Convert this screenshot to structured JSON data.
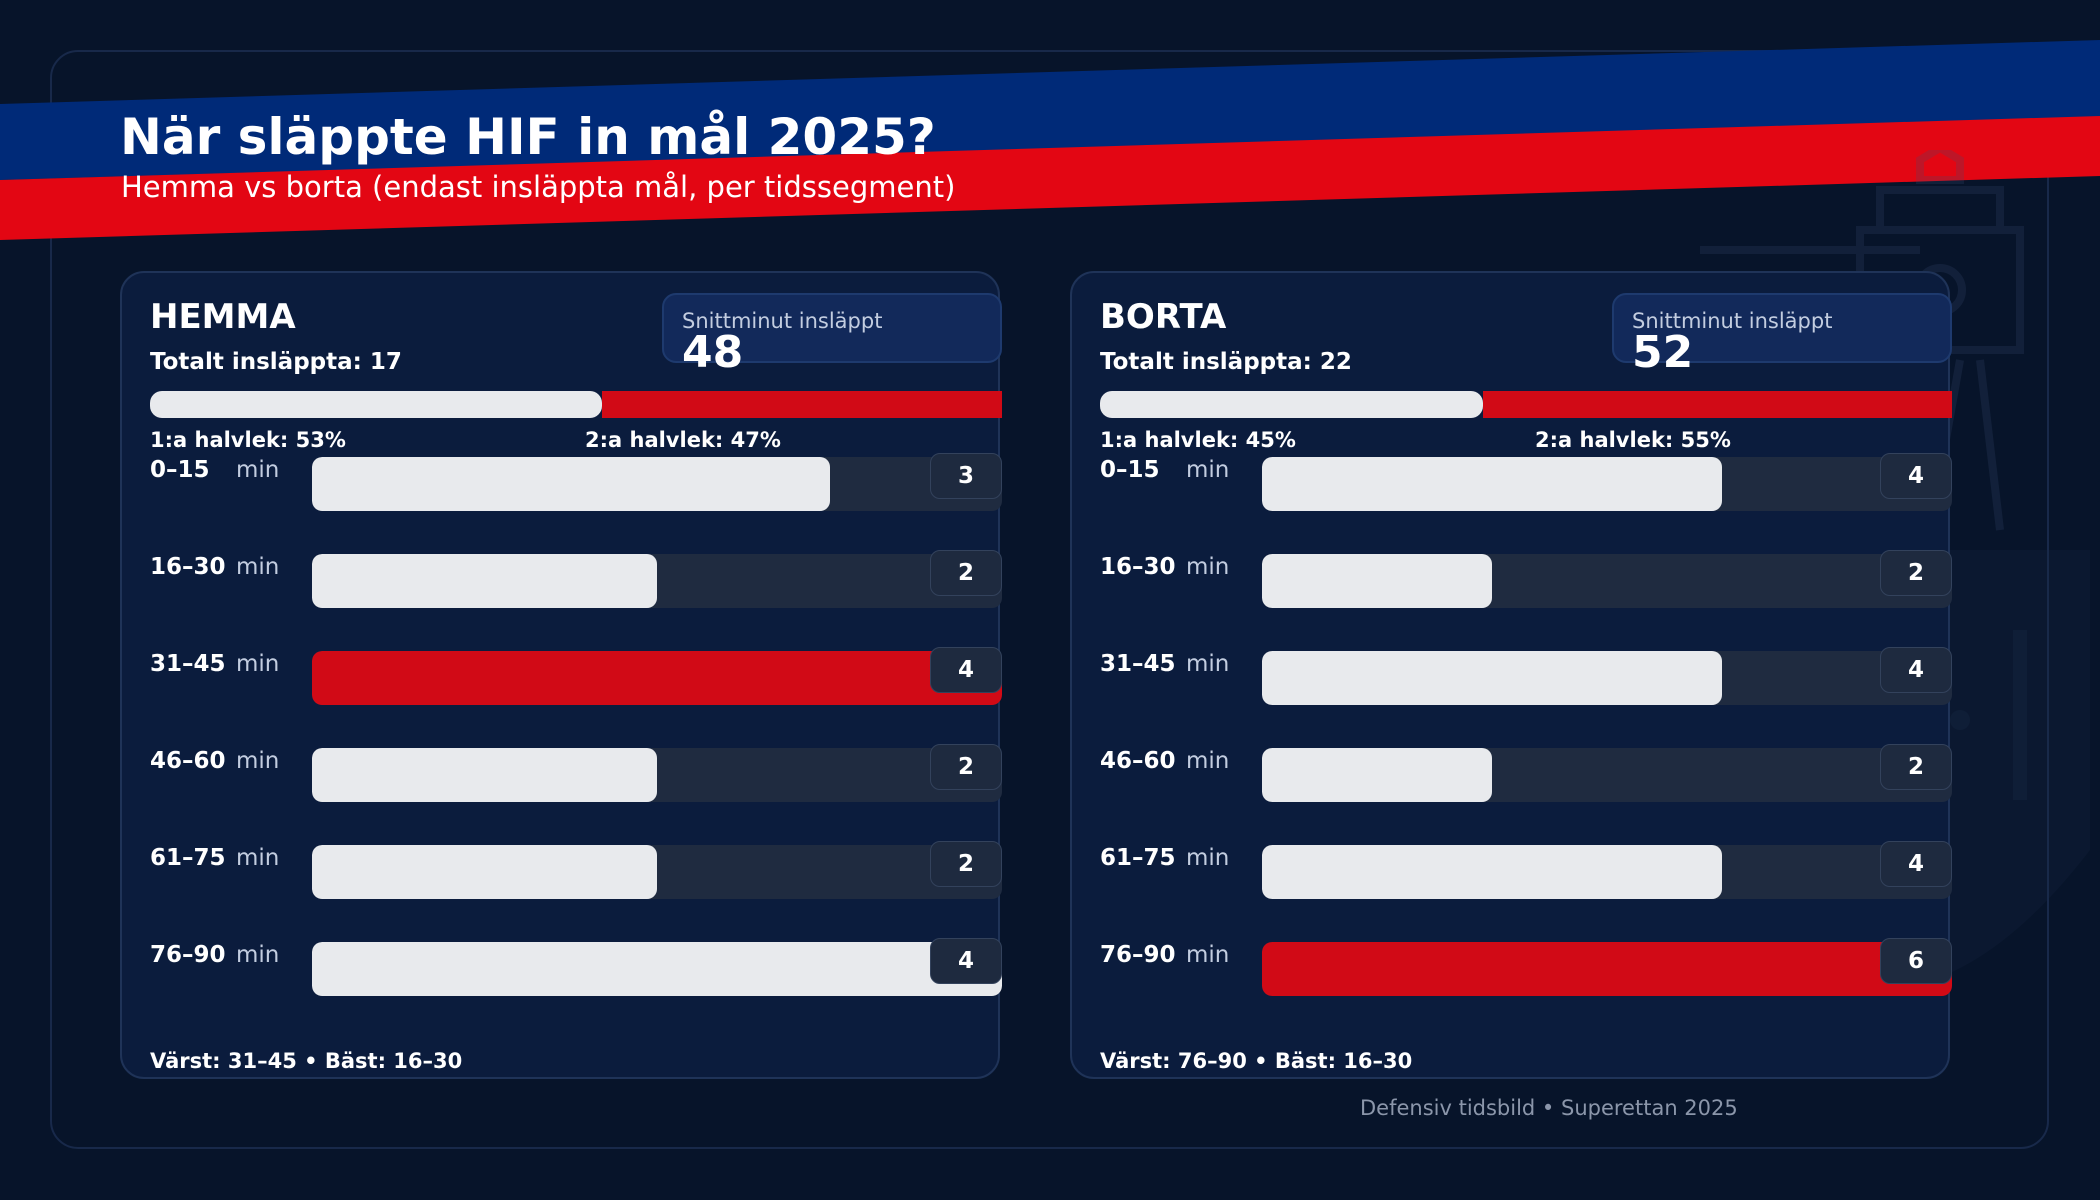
{
  "title": "När släppte HIF in mål 2025?",
  "subtitle": "Hemma vs borta (endast insläppta mål, per tidssegment)",
  "footer": "Defensiv tidsbild • Superettan 2025",
  "colors": {
    "background": "#07142a",
    "panel": "#0b1c3d",
    "accent_red": "#d10a16",
    "accent_blue": "#002a78",
    "bar_light": "#e8eaed",
    "track": "#1f2b40"
  },
  "chart_data": [
    {
      "type": "bar",
      "title": "HEMMA",
      "total_label": "Totalt insläppta: 17",
      "avg_label": "Snittminut insläppt",
      "avg_value": "48",
      "halves": [
        {
          "label": "1:a halvlek: 53%",
          "percent": 53
        },
        {
          "label": "2:a halvlek: 47%",
          "percent": 47
        }
      ],
      "categories": [
        "0–15",
        "16–30",
        "31–45",
        "46–60",
        "61–75",
        "76–90"
      ],
      "unit": "min",
      "values": [
        3,
        2,
        4,
        2,
        2,
        4
      ],
      "highlight_index": 2,
      "xlim": [
        0,
        4
      ],
      "summary": "Värst: 31–45  •  Bäst: 16–30"
    },
    {
      "type": "bar",
      "title": "BORTA",
      "total_label": "Totalt insläppta: 22",
      "avg_label": "Snittminut insläppt",
      "avg_value": "52",
      "halves": [
        {
          "label": "1:a halvlek: 45%",
          "percent": 45
        },
        {
          "label": "2:a halvlek: 55%",
          "percent": 55
        }
      ],
      "categories": [
        "0–15",
        "16–30",
        "31–45",
        "46–60",
        "61–75",
        "76–90"
      ],
      "unit": "min",
      "values": [
        4,
        2,
        4,
        2,
        4,
        6
      ],
      "highlight_index": 5,
      "xlim": [
        0,
        6
      ],
      "summary": "Värst: 76–90  •  Bäst: 16–30"
    }
  ]
}
